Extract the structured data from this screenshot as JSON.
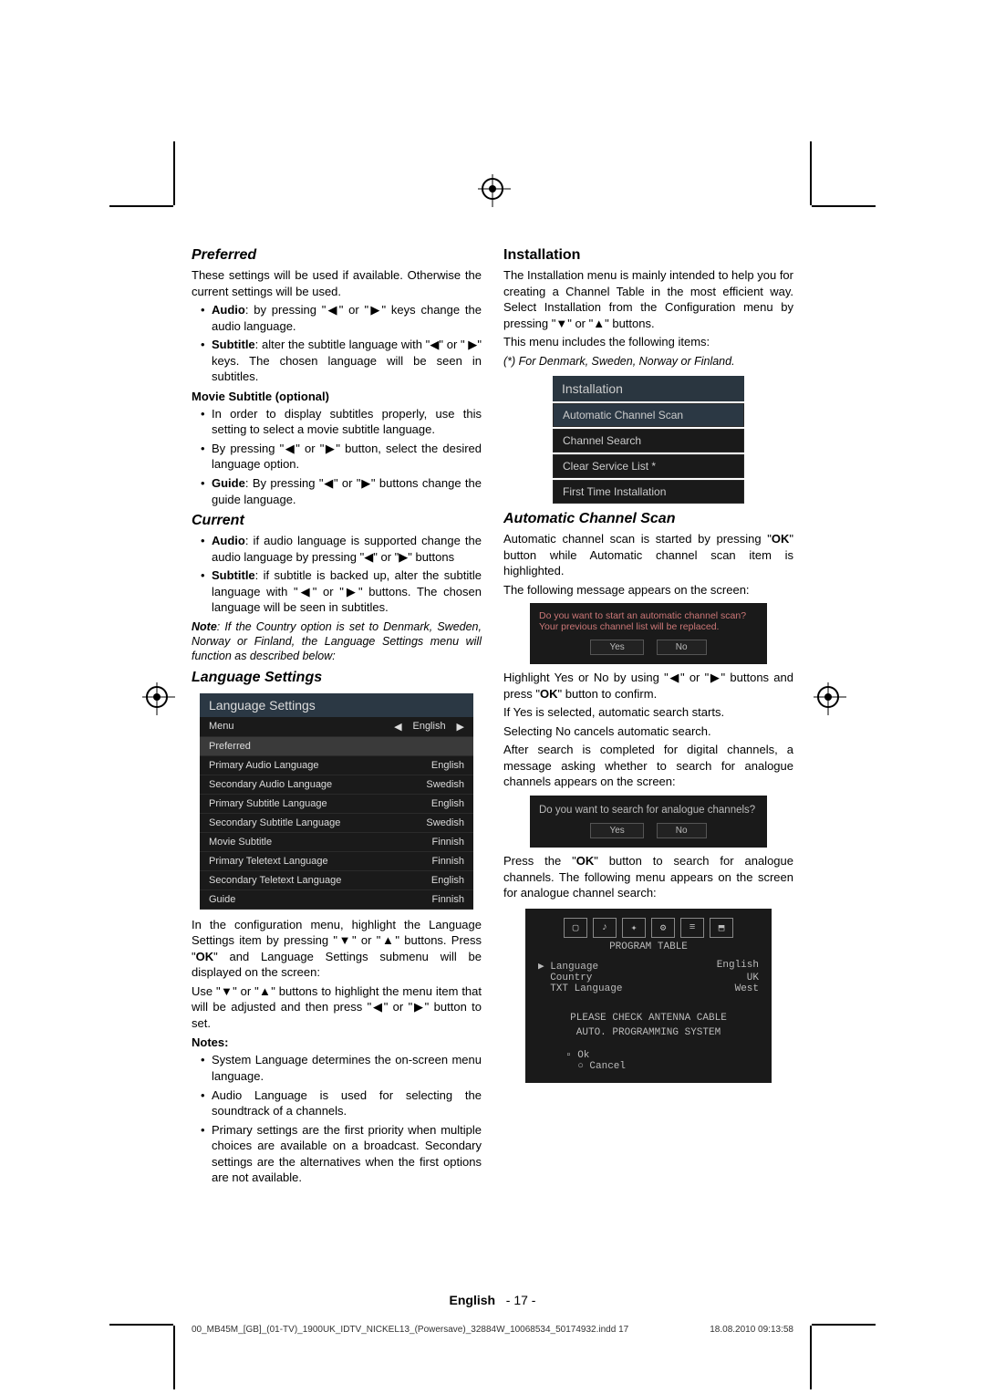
{
  "left": {
    "preferred_title": "Preferred",
    "preferred_intro": "These settings will be used if available. Otherwise the current settings will be used.",
    "audio_bullet_prefix": "Audio",
    "audio_bullet_text": ": by pressing \"◀\" or \"▶\" keys change the audio language.",
    "subtitle_bullet_prefix": "Subtitle",
    "subtitle_bullet_text": ": alter the subtitle language with \"◀\" or \" ▶\" keys. The chosen language will be seen in subtitles.",
    "movie_sub_heading": "Movie Subtitle (optional)",
    "movie_b1": "In order to display subtitles properly, use this setting to select a movie subtitle language.",
    "movie_b2": "By pressing \"◀\" or \"▶\" button, select the desired language option.",
    "guide_prefix": "Guide",
    "guide_text": ": By pressing  \"◀\" or \"▶\" buttons change the guide language.",
    "current_title": "Current",
    "cur_audio_prefix": "Audio",
    "cur_audio_text": ":  if audio language is supported change the audio language by pressing \"◀\" or \"▶\" buttons",
    "cur_sub_prefix": "Subtitle",
    "cur_sub_text": ": if subtitle is backed up, alter the subtitle language with \"◀\" or \"▶\" buttons. The chosen language will be seen in subtitles.",
    "note_text": "Note: If the Country option is set to Denmark, Sweden, Norway or Finland, the Language Settings menu will function as described below:",
    "lang_settings_title": "Language Settings",
    "lang_menu": {
      "title": "Language Settings",
      "menu_label": "Menu",
      "menu_val": "English",
      "pref_label": "Preferred",
      "rows": [
        {
          "l": "Primary Audio Language",
          "v": "English"
        },
        {
          "l": "Secondary Audio Language",
          "v": "Swedish"
        },
        {
          "l": "Primary Subtitle Language",
          "v": "English"
        },
        {
          "l": "Secondary Subtitle Language",
          "v": "Swedish"
        },
        {
          "l": "Movie Subtitle",
          "v": "Finnish"
        },
        {
          "l": "Primary Teletext Language",
          "v": "Finnish"
        },
        {
          "l": "Secondary Teletext Language",
          "v": "English"
        },
        {
          "l": "Guide",
          "v": "Finnish"
        }
      ]
    },
    "para1": "In the configuration menu, highlight the Language Settings item by pressing \"▼\" or \"▲\" buttons. Press \"OK\" and Language Settings submenu will be displayed on the screen:",
    "para2": "Use \"▼\" or \"▲\" buttons to highlight the menu item that will be adjusted and then press \"◀\" or \"▶\" button to set.",
    "notes_heading": "Notes",
    "note_b1": "System Language determines the on-screen menu language.",
    "note_b2": "Audio Language is used for selecting the soundtrack of a channels.",
    "note_b3": "Primary settings are the first priority when multiple choices are available on a broadcast. Secondary settings are the alternatives when the first options are not available."
  },
  "right": {
    "installation_title": "Installation",
    "install_p1": "The Installation menu is mainly intended to help you for creating a Channel Table in the most efficient way. Select Installation from the Configuration menu by pressing \"▼\" or \"▲\" buttons.",
    "install_p2": "This menu includes the following items:",
    "install_note": "(*) For Denmark, Sweden, Norway or Finland.",
    "install_menu": {
      "title": "Installation",
      "rows": [
        "Automatic Channel Scan",
        "Channel Search",
        "Clear Service List *",
        "First Time Installation"
      ]
    },
    "acs_title": "Automatic Channel Scan",
    "acs_p1": "Automatic channel scan is started by pressing \"OK\" button while Automatic channel scan item is highlighted.",
    "acs_p2": "The following message appears on the screen:",
    "dlg1_text": "Do you want to start an automatic channel scan? Your previous channel list will be replaced.",
    "yes": "Yes",
    "no": "No",
    "acs_p3": "Highlight Yes or No by using \"◀\" or \"▶\" buttons and press \"OK\" button to confirm.",
    "acs_p4": "If Yes is selected, automatic search starts.",
    "acs_p5": "Selecting No cancels automatic search.",
    "acs_p6": "After search is completed for digital channels, a message asking whether to search for analogue channels appears on the screen:",
    "dlg2_text": "Do you want to search for analogue channels?",
    "acs_p7": "Press the \"OK\" button to search for analogue channels. The following menu appears on the screen for analogue channel search:",
    "analog": {
      "title": "PROGRAM TABLE",
      "rows": [
        {
          "l": "Language",
          "v": "English"
        },
        {
          "l": "Country",
          "v": "UK"
        },
        {
          "l": "TXT Language",
          "v": "West"
        }
      ],
      "msg1": "PLEASE CHECK ANTENNA CABLE",
      "msg2": "AUTO. PROGRAMMING SYSTEM",
      "ok": "Ok",
      "cancel": "Cancel"
    }
  },
  "footer": {
    "lang": "English",
    "page": "- 17 -",
    "file": "00_MB45M_[GB]_(01-TV)_1900UK_IDTV_NICKEL13_(Powersave)_32884W_10068534_50174932.indd   17",
    "date": "18.08.2010   09:13:58"
  },
  "colors": {
    "menu_bg": "#1a1a1a",
    "menu_header": "#2b3844",
    "text_light": "#bbb",
    "dlg_red": "#c77"
  }
}
